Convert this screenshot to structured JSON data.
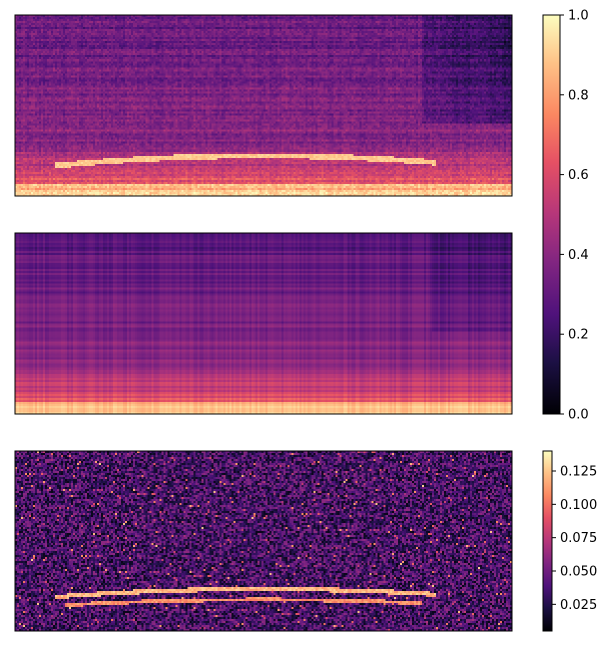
{
  "chart_data": [
    {
      "type": "heatmap",
      "name": "spectrogram-original",
      "colormap": "magma",
      "vmin": 0.0,
      "vmax": 1.0,
      "axes_ticks": false,
      "colorbar": "shared-upper",
      "description_of_values": {
        "rows": 90,
        "cols": 248,
        "low_freq_band_level": 0.92,
        "harmonic_band_level": 0.75,
        "mid_level": 0.45,
        "top_level": 0.3,
        "dark_right_region_start": 0.82,
        "curved_streak_center_row": 0.78
      }
    },
    {
      "type": "heatmap",
      "name": "spectrogram-reconstruction",
      "colormap": "magma",
      "vmin": 0.0,
      "vmax": 1.0,
      "axes_ticks": false,
      "colorbar": "shared-upper",
      "description_of_values": {
        "rows": 90,
        "cols": 248,
        "low_freq_band_level": 0.9,
        "mid_level": 0.45,
        "top_level": 0.28,
        "smooth": true
      }
    },
    {
      "type": "heatmap",
      "name": "absolute-difference",
      "colormap": "magma",
      "vmin": 0.005,
      "vmax": 0.14,
      "axes_ticks": false,
      "colorbar": "lower",
      "description_of_values": {
        "rows": 90,
        "cols": 248,
        "noise_mean": 0.035,
        "streak_level": 0.11
      }
    }
  ],
  "colorbars": {
    "upper": {
      "ticks": [
        "0.0",
        "0.2",
        "0.4",
        "0.6",
        "0.8",
        "1.0"
      ],
      "tick_values": [
        0.0,
        0.2,
        0.4,
        0.6,
        0.8,
        1.0
      ],
      "vmin": 0.0,
      "vmax": 1.0
    },
    "lower": {
      "ticks": [
        "0.025",
        "0.050",
        "0.075",
        "0.100",
        "0.125"
      ],
      "tick_values": [
        0.025,
        0.05,
        0.075,
        0.1,
        0.125
      ],
      "vmin": 0.005,
      "vmax": 0.14
    }
  }
}
